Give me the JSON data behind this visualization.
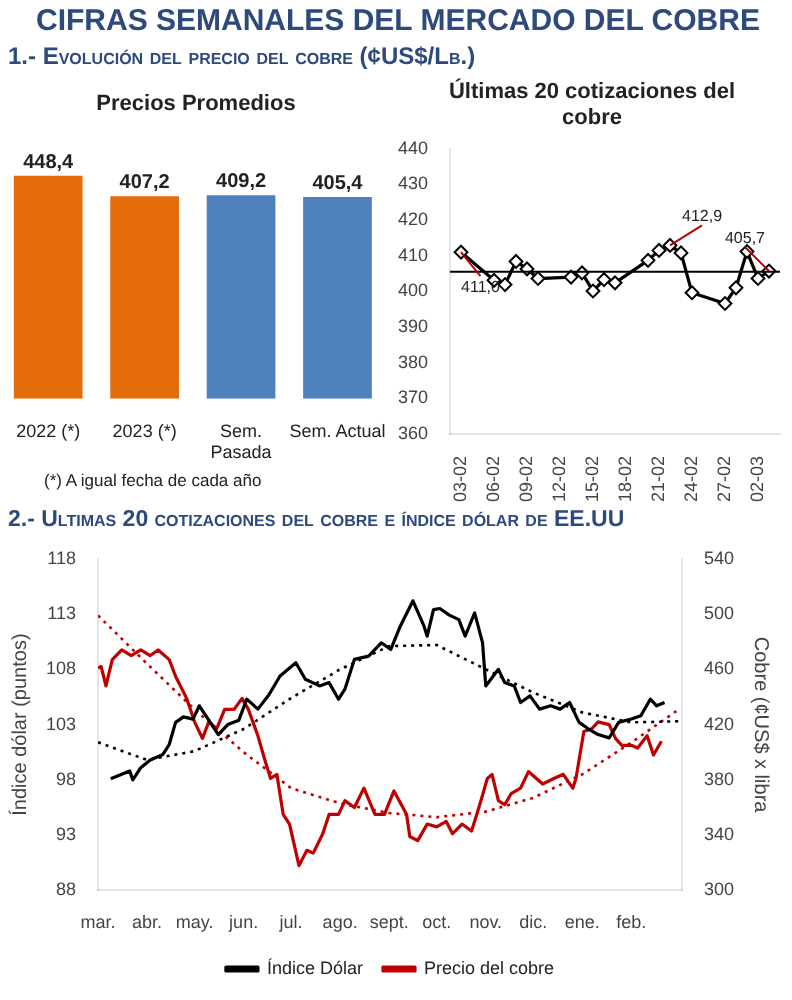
{
  "chart_data": [
    {
      "type": "other",
      "title": "CIFRAS SEMANALES DEL MERCADO DEL COBRE",
      "subtitle": "1.- Evolución del precio del cobre (¢US$/Lb.)"
    },
    {
      "type": "bar",
      "title": "Precios Promedios",
      "categories": [
        "2022 (*)",
        "2023 (*)",
        "Sem. Pasada",
        "Sem. Actual"
      ],
      "values": [
        448.4,
        407.2,
        409.2,
        405.4
      ],
      "colors": [
        "#e46c0a",
        "#e46c0a",
        "#4f81bd",
        "#4f81bd"
      ],
      "value_labels": [
        "448,4",
        "407,2",
        "409,2",
        "405,4"
      ],
      "tick_labels": "x",
      "grid": false,
      "legend": false,
      "annotations": [
        "(*) A igual fecha de cada año"
      ]
    },
    {
      "type": "line",
      "title": "Últimas 20 cotizaciones del cobre",
      "x": [
        "--02-03",
        "--02-06",
        "--02-07",
        "--02-08",
        "--02-09",
        "--02-10",
        "--02-13",
        "--02-14",
        "--02-15",
        "--02-16",
        "--02-17",
        "--02-20",
        "--02-21",
        "--02-22",
        "--02-23",
        "--02-24",
        "--02-27",
        "--02-28",
        "--03-01",
        "--03-02",
        "--03-03"
      ],
      "series": [
        {
          "color": "#000000",
          "values": [
            411.0,
            403.1,
            401.9,
            408.4,
            406.3,
            403.6,
            404.0,
            405.2,
            400.1,
            403.3,
            402.4,
            408.7,
            411.5,
            412.9,
            410.8,
            399.6,
            396.6,
            401.0,
            411.2,
            403.6,
            405.7
          ]
        }
      ],
      "xlim": [
        "--02-02",
        "--03-04"
      ],
      "xticks": [
        {
          "value": "--02-03",
          "label": "03-02"
        },
        {
          "value": "--02-06",
          "label": "06-02"
        },
        {
          "value": "--02-09",
          "label": "09-02"
        },
        {
          "value": "--02-12",
          "label": "12-02"
        },
        {
          "value": "--02-15",
          "label": "15-02"
        },
        {
          "value": "--02-18",
          "label": "18-02"
        },
        {
          "value": "--02-21",
          "label": "21-02"
        },
        {
          "value": "--02-24",
          "label": "24-02"
        },
        {
          "value": "--02-27",
          "label": "27-02"
        },
        {
          "value": "--03-02",
          "label": "02-03"
        }
      ],
      "ylim": [
        360,
        440
      ],
      "yticks": [
        360,
        370,
        380,
        390,
        400,
        410,
        420,
        430,
        440
      ],
      "marker": "diamond",
      "grid": false,
      "legend": false,
      "ref_lines": [
        {
          "axis": "y",
          "value": 405.5,
          "color": "#000000"
        }
      ],
      "annotations": [
        {
          "text": "411,0",
          "x": "--02-03",
          "y": 411.0
        },
        {
          "text": "412,9",
          "x": "--02-22",
          "y": 412.9
        },
        {
          "text": "405,7",
          "x": "--03-03",
          "y": 405.7
        }
      ]
    },
    {
      "type": "line",
      "title": "2.- Ultimas 20 cotizaciones del cobre e índice dólar de EE.UU",
      "ylabel": "Índice dólar (puntos)",
      "y2label": "Cobre (¢US$ x libra",
      "xlim": [
        "2022-03-01",
        "2023-03-05"
      ],
      "xticks": [
        {
          "value": "2022-03-01",
          "label": "mar."
        },
        {
          "value": "2022-04-01",
          "label": "abr."
        },
        {
          "value": "2022-05-01",
          "label": "may."
        },
        {
          "value": "2022-06-01",
          "label": "jun."
        },
        {
          "value": "2022-07-01",
          "label": "jul."
        },
        {
          "value": "2022-08-01",
          "label": "ago."
        },
        {
          "value": "2022-09-01",
          "label": "sept."
        },
        {
          "value": "2022-10-01",
          "label": "oct."
        },
        {
          "value": "2022-11-01",
          "label": "nov."
        },
        {
          "value": "2022-12-01",
          "label": "dic."
        },
        {
          "value": "2023-01-01",
          "label": "ene."
        },
        {
          "value": "2023-02-01",
          "label": "feb."
        }
      ],
      "ylim": [
        88,
        118
      ],
      "yticks": [
        88,
        93,
        98,
        103,
        108,
        113,
        118
      ],
      "y2lim": [
        300,
        540
      ],
      "y2ticks": [
        300,
        340,
        380,
        420,
        460,
        500,
        540
      ],
      "grid": false,
      "legend": "bottom",
      "marker": "none",
      "series": [
        {
          "name": "Índice Dólar",
          "color": "#000000",
          "x": [
            "2022-03-09",
            "2022-03-16",
            "2022-03-21",
            "2022-03-23",
            "2022-03-28",
            "2022-04-03",
            "2022-04-11",
            "2022-04-15",
            "2022-04-19",
            "2022-04-24",
            "2022-04-30",
            "2022-05-04",
            "2022-05-10",
            "2022-05-16",
            "2022-05-22",
            "2022-05-29",
            "2022-06-03",
            "2022-06-10",
            "2022-06-17",
            "2022-06-24",
            "2022-07-04",
            "2022-07-10",
            "2022-07-19",
            "2022-07-25",
            "2022-07-31",
            "2022-08-04",
            "2022-08-10",
            "2022-08-19",
            "2022-08-27",
            "2022-09-02",
            "2022-09-08",
            "2022-09-16",
            "2022-09-23",
            "2022-09-25",
            "2022-09-29",
            "2022-10-03",
            "2022-10-09",
            "2022-10-15",
            "2022-10-19",
            "2022-10-25",
            "2022-10-30",
            "2022-11-01",
            "2022-11-09",
            "2022-11-13",
            "2022-11-19",
            "2022-11-23",
            "2022-11-29",
            "2022-12-05",
            "2022-12-12",
            "2022-12-18",
            "2022-12-24",
            "2022-12-30",
            "2023-01-05",
            "2023-01-11",
            "2023-01-18",
            "2023-01-24",
            "2023-02-01",
            "2023-02-07",
            "2023-02-13",
            "2023-02-17",
            "2023-02-22"
          ],
          "values": [
            98.1,
            98.5,
            98.8,
            98.0,
            99.1,
            99.8,
            100.3,
            101.2,
            103.2,
            103.7,
            103.5,
            104.7,
            103.4,
            102.1,
            103.0,
            103.4,
            105.3,
            104.4,
            105.7,
            107.4,
            108.6,
            107.1,
            106.5,
            106.8,
            105.3,
            106.2,
            108.9,
            109.2,
            110.4,
            109.8,
            111.9,
            114.2,
            111.9,
            111.0,
            113.4,
            113.5,
            112.9,
            112.5,
            111.0,
            113.1,
            110.4,
            106.5,
            108.0,
            106.8,
            106.5,
            105.0,
            105.6,
            104.4,
            104.7,
            104.4,
            105.0,
            103.2,
            102.6,
            102.1,
            101.8,
            103.2,
            103.5,
            103.8,
            105.3,
            104.7,
            105.0
          ]
        },
        {
          "name": "Precio del cobre",
          "color": "#c00000",
          "axis": "y2",
          "x": [
            "2022-03-01",
            "2022-03-03",
            "2022-03-06",
            "2022-03-10",
            "2022-03-16",
            "2022-03-22",
            "2022-03-28",
            "2022-04-03",
            "2022-04-08",
            "2022-04-15",
            "2022-04-19",
            "2022-04-26",
            "2022-05-01",
            "2022-05-06",
            "2022-05-10",
            "2022-05-15",
            "2022-05-20",
            "2022-05-26",
            "2022-05-31",
            "2022-06-04",
            "2022-06-10",
            "2022-06-14",
            "2022-06-18",
            "2022-06-22",
            "2022-06-26",
            "2022-06-30",
            "2022-07-06",
            "2022-07-11",
            "2022-07-15",
            "2022-07-21",
            "2022-07-25",
            "2022-07-31",
            "2022-08-04",
            "2022-08-10",
            "2022-08-16",
            "2022-08-23",
            "2022-08-29",
            "2022-09-04",
            "2022-09-12",
            "2022-09-14",
            "2022-09-19",
            "2022-09-25",
            "2022-10-01",
            "2022-10-07",
            "2022-10-11",
            "2022-10-17",
            "2022-10-23",
            "2022-10-25",
            "2022-10-29",
            "2022-11-02",
            "2022-11-05",
            "2022-11-09",
            "2022-11-13",
            "2022-11-17",
            "2022-11-23",
            "2022-11-28",
            "2022-12-03",
            "2022-12-07",
            "2022-12-14",
            "2022-12-20",
            "2022-12-26",
            "2022-12-28",
            "2023-01-02",
            "2023-01-07",
            "2023-01-11",
            "2023-01-18",
            "2023-01-22",
            "2023-01-26",
            "2023-02-01",
            "2023-02-05",
            "2023-02-11",
            "2023-02-15",
            "2023-02-20"
          ],
          "values": [
            461,
            462,
            448,
            467,
            474,
            470,
            474,
            470,
            474,
            467,
            455,
            439,
            422,
            410,
            422,
            417,
            431,
            431,
            439,
            431,
            412,
            396,
            381,
            384,
            355,
            348,
            318,
            329,
            327,
            341,
            355,
            355,
            365,
            360,
            374,
            355,
            355,
            372,
            355,
            339,
            336,
            348,
            346,
            350,
            341,
            348,
            343,
            350,
            365,
            381,
            384,
            365,
            362,
            370,
            374,
            386,
            381,
            377,
            381,
            384,
            374,
            381,
            415,
            417,
            422,
            420,
            410,
            405,
            405,
            403,
            412,
            398,
            408
          ]
        },
        {
          "type": "line",
          "color": "#000000",
          "line_style": "dotted",
          "x": [
            "2022-03-01",
            "2022-04-01",
            "2022-05-01",
            "2022-06-01",
            "2022-07-01",
            "2022-08-01",
            "2022-09-01",
            "2022-10-01",
            "2022-11-01",
            "2022-12-01",
            "2023-01-01",
            "2023-02-01",
            "2023-03-03"
          ],
          "values": [
            101.4,
            99.8,
            100.6,
            102.6,
            105.4,
            108.0,
            110.1,
            110.2,
            108.0,
            105.9,
            104.1,
            103.2,
            103.3
          ]
        },
        {
          "type": "line",
          "color": "#c00000",
          "line_style": "dotted",
          "axis": "y2",
          "x": [
            "2022-03-01",
            "2022-04-01",
            "2022-05-01",
            "2022-06-01",
            "2022-07-01",
            "2022-08-01",
            "2022-09-01",
            "2022-10-01",
            "2022-11-01",
            "2022-12-01",
            "2023-01-01",
            "2023-02-01",
            "2023-03-03"
          ],
          "values": [
            499,
            464,
            431,
            400,
            374,
            363,
            356,
            353,
            357,
            367,
            384,
            407,
            431
          ]
        }
      ]
    }
  ]
}
